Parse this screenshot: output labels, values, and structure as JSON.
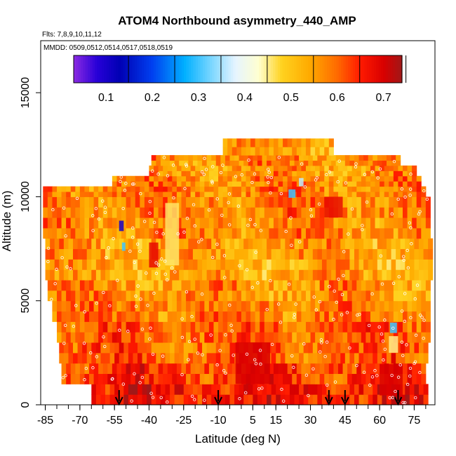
{
  "chart_data": {
    "type": "heatmap",
    "title": "ATOM4 Northbound asymmetry_440_AMP",
    "flights_label": "Flts: 7,8,9,10,11,12",
    "dates_label": "MMDD: 0509,0512,0514,0517,0518,0519",
    "xlabel": "Latitude (deg N)",
    "ylabel": "Altitude (m)",
    "xlim": [
      -87,
      84
    ],
    "ylim": [
      0,
      17500
    ],
    "x_ticks": [
      -85,
      -70,
      -55,
      -40,
      -25,
      -10,
      5,
      15,
      30,
      45,
      60,
      75
    ],
    "x_minor_step": 5,
    "y_ticks": [
      0,
      5000,
      10000,
      15000
    ],
    "colorbar": {
      "range": [
        0.03,
        0.74
      ],
      "ticks": [
        0.1,
        0.2,
        0.3,
        0.4,
        0.5,
        0.6,
        0.7
      ],
      "stops": [
        {
          "v": 0.03,
          "c": "#8b2be2"
        },
        {
          "v": 0.08,
          "c": "#2800d8"
        },
        {
          "v": 0.13,
          "c": "#0000b4"
        },
        {
          "v": 0.2,
          "c": "#0040f0"
        },
        {
          "v": 0.27,
          "c": "#00b0ff"
        },
        {
          "v": 0.33,
          "c": "#7fd8ff"
        },
        {
          "v": 0.38,
          "c": "#e6f4ff"
        },
        {
          "v": 0.43,
          "c": "#ffffd0"
        },
        {
          "v": 0.48,
          "c": "#ffd21f"
        },
        {
          "v": 0.54,
          "c": "#ffaa00"
        },
        {
          "v": 0.6,
          "c": "#ff6a00"
        },
        {
          "v": 0.65,
          "c": "#ff1a00"
        },
        {
          "v": 0.7,
          "c": "#d90000"
        },
        {
          "v": 0.74,
          "c": "#a01818"
        }
      ]
    },
    "arrows_latitude": [
      -53,
      -10,
      38,
      45,
      68
    ],
    "bands": [
      {
        "y0": 0,
        "y1": 1000,
        "x0": -65,
        "x1": 80,
        "base": 0.64
      },
      {
        "y0": 1000,
        "y1": 2000,
        "x0": -78,
        "x1": 80,
        "base": 0.62
      },
      {
        "y0": 2000,
        "y1": 3000,
        "x0": -79,
        "x1": 80,
        "base": 0.61
      },
      {
        "y0": 3000,
        "y1": 4000,
        "x0": -80,
        "x1": 81,
        "base": 0.6
      },
      {
        "y0": 4000,
        "y1": 5000,
        "x0": -82,
        "x1": 81,
        "base": 0.58
      },
      {
        "y0": 5000,
        "y1": 6000,
        "x0": -84,
        "x1": 81,
        "base": 0.56
      },
      {
        "y0": 6000,
        "y1": 7000,
        "x0": -85,
        "x1": 82,
        "base": 0.54
      },
      {
        "y0": 7000,
        "y1": 8000,
        "x0": -85,
        "x1": 82,
        "base": 0.55
      },
      {
        "y0": 8000,
        "y1": 9000,
        "x0": -86,
        "x1": 82,
        "base": 0.57
      },
      {
        "y0": 9000,
        "y1": 10000,
        "x0": -86,
        "x1": 82,
        "base": 0.58
      },
      {
        "y0": 10000,
        "y1": 10500,
        "x0": -86,
        "x1": 80,
        "base": 0.58
      },
      {
        "y0": 10500,
        "y1": 11000,
        "x0": -56,
        "x1": 77,
        "base": 0.57
      },
      {
        "y0": 11000,
        "y1": 11500,
        "x0": -40,
        "x1": 75,
        "base": 0.56
      },
      {
        "y0": 11500,
        "y1": 12000,
        "x0": -39,
        "x1": 68,
        "base": 0.57
      },
      {
        "y0": 12000,
        "y1": 12800,
        "x0": -8,
        "x1": 40,
        "base": 0.55
      }
    ],
    "anomalies": [
      {
        "lat": -30,
        "alt": 8200,
        "w": 6,
        "h": 3000,
        "v": 0.46
      },
      {
        "lat": -38,
        "alt": 7200,
        "w": 4,
        "h": 1200,
        "v": 0.68
      },
      {
        "lat": -52,
        "alt": 8600,
        "w": 2,
        "h": 500,
        "v": 0.1
      },
      {
        "lat": -51,
        "alt": 7600,
        "w": 1.5,
        "h": 400,
        "v": 0.3
      },
      {
        "lat": 22,
        "alt": 10150,
        "w": 3,
        "h": 400,
        "v": 0.3
      },
      {
        "lat": 26,
        "alt": 10700,
        "w": 2,
        "h": 400,
        "v": 0.36
      },
      {
        "lat": 66,
        "alt": 3700,
        "w": 3,
        "h": 500,
        "v": 0.3
      },
      {
        "lat": 66,
        "alt": 2900,
        "w": 4,
        "h": 800,
        "v": 0.45
      },
      {
        "lat": 5,
        "alt": 2000,
        "w": 15,
        "h": 2000,
        "v": 0.7
      },
      {
        "lat": 65,
        "alt": 1200,
        "w": 10,
        "h": 1500,
        "v": 0.7
      },
      {
        "lat": 40,
        "alt": 9500,
        "w": 8,
        "h": 1000,
        "v": 0.68
      }
    ]
  }
}
